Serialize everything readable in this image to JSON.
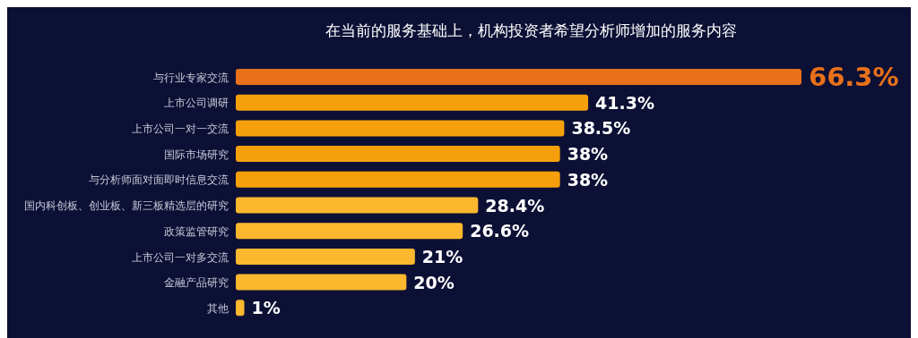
{
  "chart_data": {
    "type": "bar",
    "orientation": "horizontal",
    "title": "在当前的服务基础上，机构投资者希望分析师增加的服务内容",
    "categories": [
      "与行业专家交流",
      "上市公司调研",
      "上市公司一对一交流",
      "国际市场研究",
      "与分析师面对面即时信息交流",
      "国内科创板、创业板、新三板精选层的研究",
      "政策监管研究",
      "上市公司一对多交流",
      "金融产品研究",
      "其他"
    ],
    "values": [
      66.3,
      41.3,
      38.5,
      38,
      38,
      28.4,
      26.6,
      21,
      20,
      1
    ],
    "value_labels": [
      "66.3%",
      "41.3%",
      "38.5%",
      "38%",
      "38%",
      "28.4%",
      "26.6%",
      "21%",
      "20%",
      "1%"
    ],
    "colors": [
      "#e8711a",
      "#f5a00a",
      "#f5a00a",
      "#f5a00a",
      "#f5a00a",
      "#fbb72e",
      "#fbb72e",
      "#fbb72e",
      "#fbb72e",
      "#fbb72e"
    ],
    "grid": false,
    "legend": false
  }
}
